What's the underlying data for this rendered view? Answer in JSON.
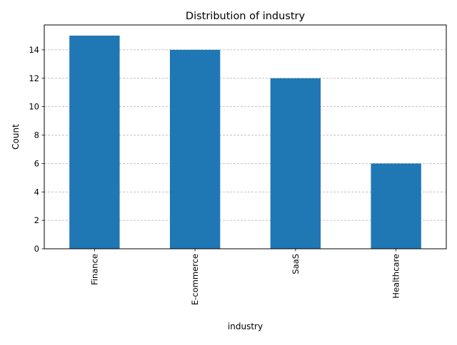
{
  "chart_data": {
    "type": "bar",
    "title": "Distribution of industry",
    "xlabel": "industry",
    "ylabel": "Count",
    "categories": [
      "Finance",
      "E-commerce",
      "SaaS",
      "Healthcare"
    ],
    "values": [
      15,
      14,
      12,
      6
    ],
    "ylim": [
      0,
      15.75
    ],
    "yticks": [
      0,
      2,
      4,
      6,
      8,
      10,
      12,
      14
    ],
    "grid": "y-dashed",
    "legend": "none",
    "colors": {
      "bar": "#1f77b4",
      "grid": "#b0b0b0",
      "axis": "#000000"
    }
  }
}
